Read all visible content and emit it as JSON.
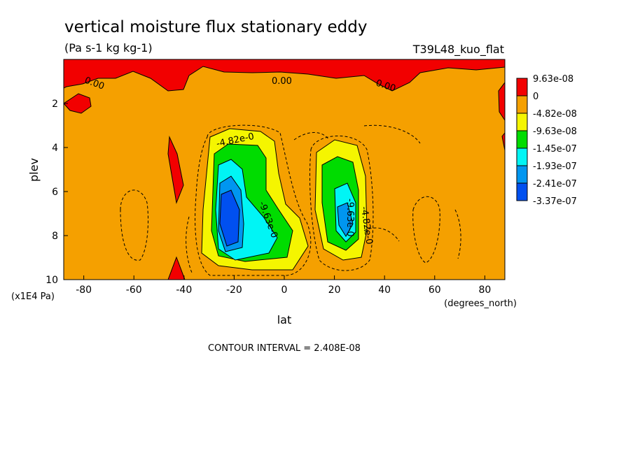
{
  "chart_data": {
    "type": "contour",
    "title": "vertical moisture flux stationary eddy",
    "units": "(Pa s-1 kg kg-1)",
    "run_label": "T39L48_kuo_flat",
    "xlabel": "lat",
    "x_units": "(degrees_north)",
    "ylabel": "plev",
    "y_units": "(x1E4 Pa)",
    "xlim": [
      -88,
      88
    ],
    "ylim": [
      10,
      0
    ],
    "x_ticks": [
      -80,
      -60,
      -40,
      -20,
      0,
      20,
      40,
      60,
      80
    ],
    "x_tick_labels": [
      "-80",
      "-60",
      "-40",
      "-20",
      "0",
      "20",
      "40",
      "60",
      "80"
    ],
    "y_ticks": [
      2,
      4,
      6,
      8,
      10
    ],
    "y_tick_labels": [
      "2",
      "4",
      "6",
      "8",
      "10"
    ],
    "contour_interval": "CONTOUR INTERVAL = 2.408E-08",
    "legend": {
      "placement": "right",
      "labels": [
        "9.63e-08",
        "0",
        "-4.82e-08",
        "-9.63e-08",
        "-1.45e-07",
        "-1.93e-07",
        "-2.41e-07",
        "-3.37e-07"
      ],
      "colors": [
        "#f20000",
        "#f5a000",
        "#f5f500",
        "#00dc00",
        "#00f5f5",
        "#0096f0",
        "#0050f0"
      ]
    },
    "contour_labels": [
      "0.00",
      "0.00",
      "0.00",
      "-4.82e-0",
      "-9.63e-0",
      "-9.63e-0",
      "-4.82e-0"
    ]
  }
}
